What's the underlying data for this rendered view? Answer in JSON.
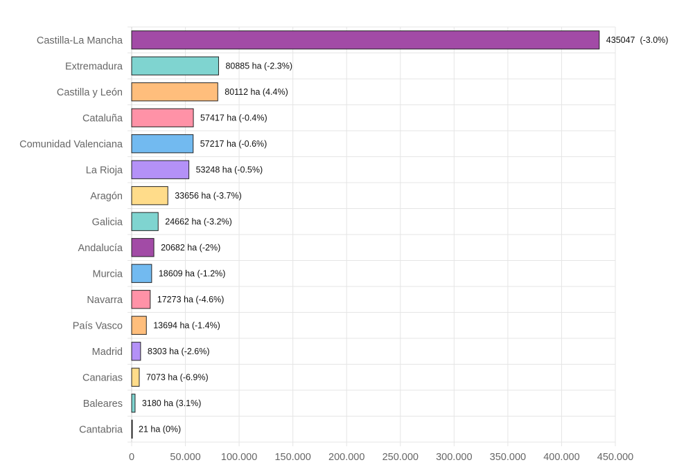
{
  "chart_data": {
    "type": "bar",
    "orientation": "horizontal",
    "title": "",
    "xlabel": "",
    "ylabel": "",
    "xlim": [
      0,
      450000
    ],
    "x_ticks": [
      0,
      50000,
      100000,
      150000,
      200000,
      250000,
      300000,
      350000,
      400000,
      450000
    ],
    "x_tick_labels": [
      "0",
      "50.000",
      "100.000",
      "150.000",
      "200.000",
      "250.000",
      "300.000",
      "350.000",
      "400.000",
      "450.000"
    ],
    "grid": true,
    "legend": "none",
    "categories": [
      "Castilla-La Mancha",
      "Extremadura",
      "Castilla y León",
      "Cataluña",
      "Comunidad Valenciana",
      "La Rioja",
      "Aragón",
      "Galicia",
      "Andalucía",
      "Murcia",
      "Navarra",
      "País Vasco",
      "Madrid",
      "Canarias",
      "Baleares",
      "Cantabria"
    ],
    "values": [
      435047,
      80885,
      80112,
      57417,
      57217,
      53248,
      33656,
      24662,
      20682,
      18609,
      17273,
      13694,
      8303,
      7073,
      3180,
      21
    ],
    "data_labels": [
      "435047  (-3.0%)",
      "80885 ha (-2.3%)",
      "80112 ha (4.4%)",
      "57417 ha (-0.4%)",
      "57217 ha (-0.6%)",
      "53248 ha (-0.5%)",
      "33656 ha (-3.7%)",
      "24662 ha (-3.2%)",
      "20682 ha (-2%)",
      "18609 ha (-1.2%)",
      "17273 ha (-4.6%)",
      "13694 ha (-1.4%)",
      "8303 ha (-2.6%)",
      "7073 ha (-6.9%)",
      "3180 ha (3.1%)",
      "21 ha (0%)"
    ],
    "colors": [
      "#a24ba6",
      "#7fd4d0",
      "#ffbe7c",
      "#ff92a7",
      "#72baf0",
      "#b491f7",
      "#ffdc8a",
      "#7fd4d0",
      "#a24ba6",
      "#72baf0",
      "#ff92a7",
      "#ffbe7c",
      "#b491f7",
      "#ffdc8a",
      "#7fd4d0",
      "#a24ba6"
    ],
    "bar_border_color": "#222222",
    "grid_color": "#e5e5e5"
  }
}
